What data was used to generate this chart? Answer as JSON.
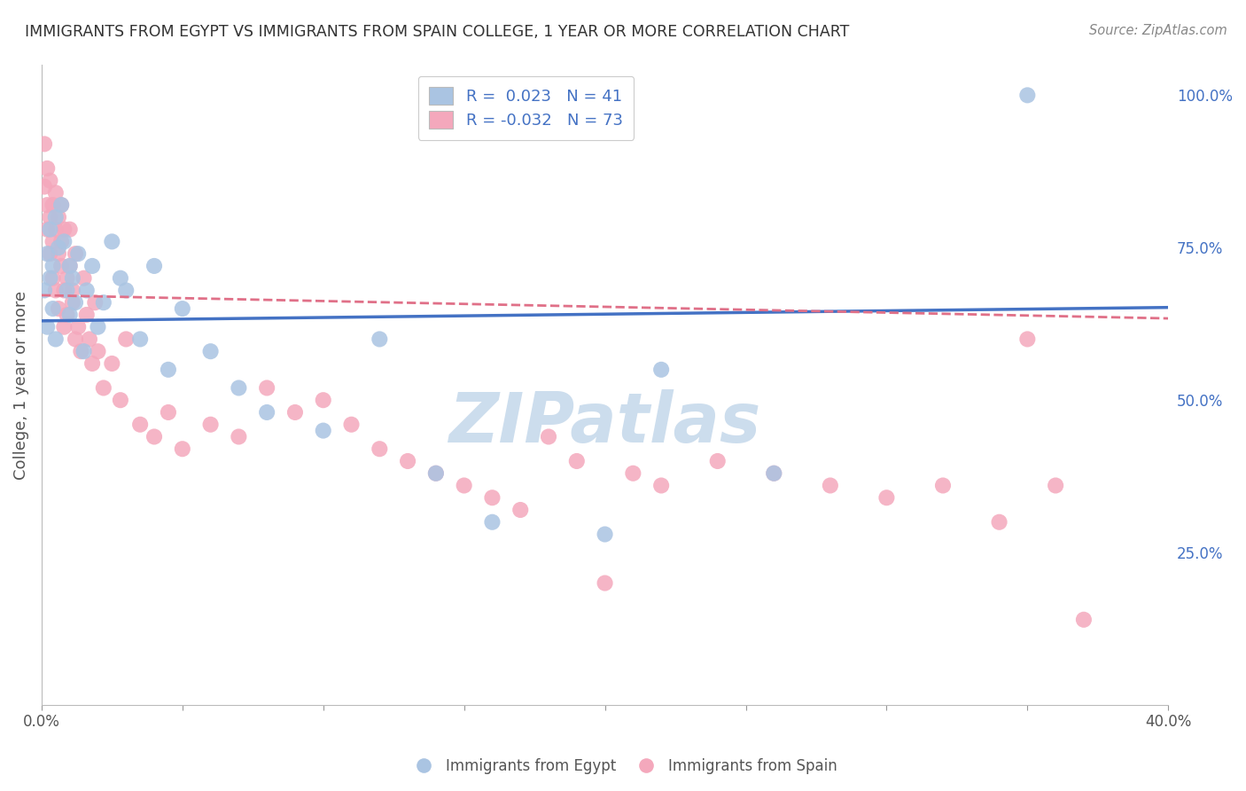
{
  "title": "IMMIGRANTS FROM EGYPT VS IMMIGRANTS FROM SPAIN COLLEGE, 1 YEAR OR MORE CORRELATION CHART",
  "source": "Source: ZipAtlas.com",
  "ylabel": "College, 1 year or more",
  "xlim": [
    0.0,
    0.4
  ],
  "ylim": [
    0.0,
    1.05
  ],
  "xticks": [
    0.0,
    0.05,
    0.1,
    0.15,
    0.2,
    0.25,
    0.3,
    0.35,
    0.4
  ],
  "yticks_right": [
    0.0,
    0.25,
    0.5,
    0.75,
    1.0
  ],
  "yticklabels_right": [
    "",
    "25.0%",
    "50.0%",
    "75.0%",
    "100.0%"
  ],
  "egypt_color": "#aac4e2",
  "spain_color": "#f4a8bc",
  "egypt_line_color": "#4472c4",
  "spain_line_color": "#e07088",
  "egypt_R": 0.023,
  "egypt_N": 41,
  "spain_R": -0.032,
  "spain_N": 73,
  "watermark": "ZIPatlas",
  "watermark_color": "#ccdded",
  "background_color": "#ffffff",
  "grid_color": "#dddddd",
  "egypt_x": [
    0.001,
    0.002,
    0.002,
    0.003,
    0.003,
    0.004,
    0.004,
    0.005,
    0.005,
    0.006,
    0.007,
    0.008,
    0.009,
    0.01,
    0.01,
    0.011,
    0.012,
    0.013,
    0.015,
    0.016,
    0.018,
    0.02,
    0.022,
    0.025,
    0.028,
    0.03,
    0.035,
    0.04,
    0.045,
    0.05,
    0.06,
    0.07,
    0.08,
    0.1,
    0.12,
    0.14,
    0.16,
    0.2,
    0.22,
    0.26,
    0.35
  ],
  "egypt_y": [
    0.68,
    0.74,
    0.62,
    0.78,
    0.7,
    0.72,
    0.65,
    0.8,
    0.6,
    0.75,
    0.82,
    0.76,
    0.68,
    0.72,
    0.64,
    0.7,
    0.66,
    0.74,
    0.58,
    0.68,
    0.72,
    0.62,
    0.66,
    0.76,
    0.7,
    0.68,
    0.6,
    0.72,
    0.55,
    0.65,
    0.58,
    0.52,
    0.48,
    0.45,
    0.6,
    0.38,
    0.3,
    0.28,
    0.55,
    0.38,
    1.0
  ],
  "spain_x": [
    0.001,
    0.001,
    0.002,
    0.002,
    0.002,
    0.003,
    0.003,
    0.003,
    0.004,
    0.004,
    0.004,
    0.005,
    0.005,
    0.005,
    0.006,
    0.006,
    0.006,
    0.007,
    0.007,
    0.007,
    0.008,
    0.008,
    0.008,
    0.009,
    0.009,
    0.01,
    0.01,
    0.011,
    0.011,
    0.012,
    0.012,
    0.013,
    0.014,
    0.015,
    0.016,
    0.017,
    0.018,
    0.019,
    0.02,
    0.022,
    0.025,
    0.028,
    0.03,
    0.035,
    0.04,
    0.045,
    0.05,
    0.06,
    0.07,
    0.08,
    0.09,
    0.1,
    0.11,
    0.12,
    0.13,
    0.14,
    0.15,
    0.16,
    0.17,
    0.18,
    0.19,
    0.2,
    0.21,
    0.22,
    0.24,
    0.26,
    0.28,
    0.3,
    0.32,
    0.34,
    0.35,
    0.36,
    0.37
  ],
  "spain_y": [
    0.92,
    0.85,
    0.82,
    0.88,
    0.78,
    0.8,
    0.86,
    0.74,
    0.76,
    0.82,
    0.7,
    0.78,
    0.84,
    0.68,
    0.8,
    0.74,
    0.65,
    0.82,
    0.76,
    0.72,
    0.68,
    0.78,
    0.62,
    0.7,
    0.64,
    0.78,
    0.72,
    0.66,
    0.68,
    0.74,
    0.6,
    0.62,
    0.58,
    0.7,
    0.64,
    0.6,
    0.56,
    0.66,
    0.58,
    0.52,
    0.56,
    0.5,
    0.6,
    0.46,
    0.44,
    0.48,
    0.42,
    0.46,
    0.44,
    0.52,
    0.48,
    0.5,
    0.46,
    0.42,
    0.4,
    0.38,
    0.36,
    0.34,
    0.32,
    0.44,
    0.4,
    0.2,
    0.38,
    0.36,
    0.4,
    0.38,
    0.36,
    0.34,
    0.36,
    0.3,
    0.6,
    0.36,
    0.14
  ]
}
